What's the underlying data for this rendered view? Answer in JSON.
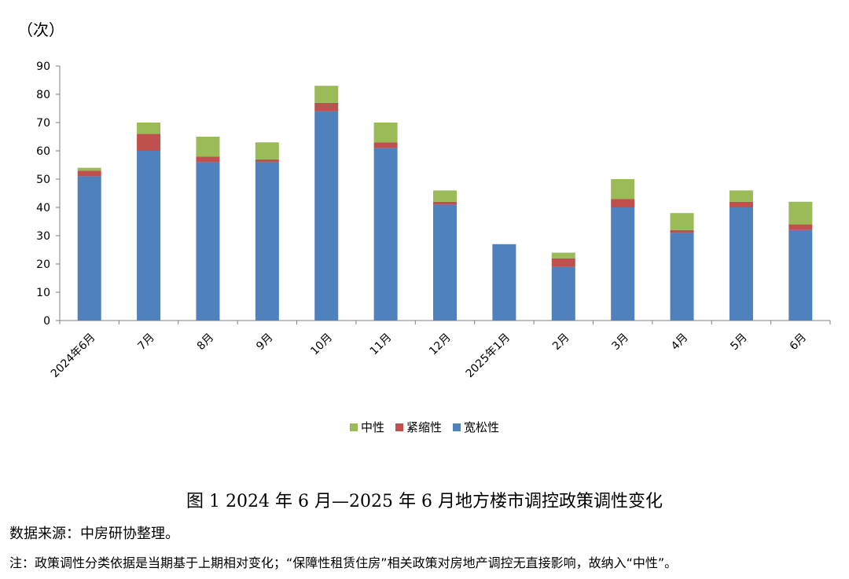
{
  "unit_label": "（次）",
  "caption": "图 1  2024 年 6 月—2025 年 6 月地方楼市调控政策调性变化",
  "source": "数据来源：中房研协整理。",
  "note": "注：政策调性分类依据是当期基于上期相对变化；“保障性租赁住房”相关政策对房地产调控无直接影响，故纳入“中性”。",
  "colors": {
    "宽松性": "#4f81bd",
    "紧缩性": "#c0504d",
    "中性": "#9bbb59",
    "axis": "#808080"
  },
  "chart_data": {
    "type": "bar",
    "stacked": true,
    "categories": [
      "2024年6月",
      "7月",
      "8月",
      "9月",
      "10月",
      "11月",
      "12月",
      "2025年1月",
      "2月",
      "3月",
      "4月",
      "5月",
      "6月"
    ],
    "series": [
      {
        "name": "宽松性",
        "values": [
          51,
          60,
          56,
          56,
          74,
          61,
          41,
          27,
          19,
          40,
          31,
          40,
          32
        ]
      },
      {
        "name": "紧缩性",
        "values": [
          2,
          6,
          2,
          1,
          3,
          2,
          1,
          0,
          3,
          3,
          1,
          2,
          2
        ]
      },
      {
        "name": "中性",
        "values": [
          1,
          4,
          7,
          6,
          6,
          7,
          4,
          0,
          2,
          7,
          6,
          4,
          8
        ]
      }
    ],
    "ylim": [
      0,
      90
    ],
    "yticks": [
      0,
      10,
      20,
      30,
      40,
      50,
      60,
      70,
      80,
      90
    ],
    "legend": [
      "中性",
      "紧缩性",
      "宽松性"
    ],
    "legend_position": "bottom"
  }
}
